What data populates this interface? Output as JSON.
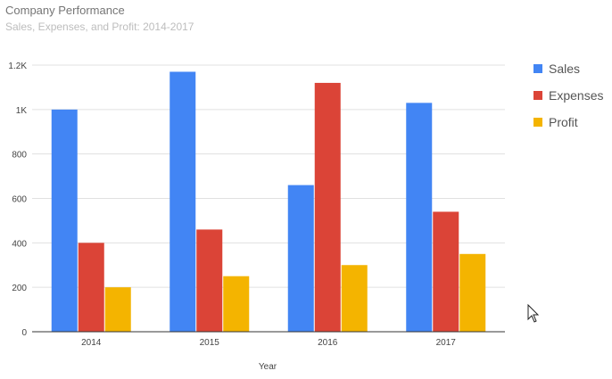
{
  "chart_data": {
    "type": "bar",
    "title": "Company Performance",
    "subtitle": "Sales, Expenses, and Profit: 2014-2017",
    "xlabel": "Year",
    "ylabel": "",
    "categories": [
      "2014",
      "2015",
      "2016",
      "2017"
    ],
    "series": [
      {
        "name": "Sales",
        "values": [
          1000,
          1170,
          660,
          1030
        ],
        "color": "#4285f4"
      },
      {
        "name": "Expenses",
        "values": [
          400,
          460,
          1120,
          540
        ],
        "color": "#db4437"
      },
      {
        "name": "Profit",
        "values": [
          200,
          250,
          300,
          350
        ],
        "color": "#f4b400"
      }
    ],
    "ylim": [
      0,
      1200
    ],
    "y_ticks": [
      0,
      200,
      400,
      600,
      800,
      1000,
      1200
    ],
    "y_tick_labels": [
      "0",
      "200",
      "400",
      "600",
      "800",
      "1K",
      "1.2K"
    ],
    "grid": true,
    "legend_position": "right"
  },
  "cursor": {
    "icon": "mouse-pointer-icon"
  }
}
